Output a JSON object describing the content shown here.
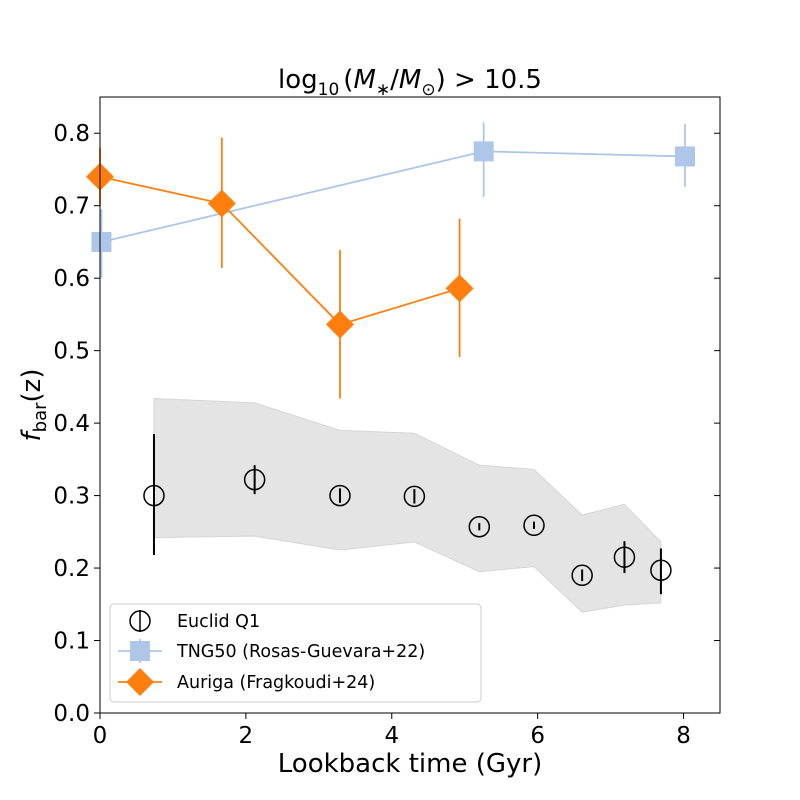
{
  "chart_data": {
    "type": "scatter",
    "title_parts": {
      "log": "log",
      "log_sub": "10",
      "open": "(",
      "m": "M",
      "m_sub": "∗",
      "slash": "/",
      "m2": "M",
      "m2_sub": "⊙",
      "close": ")",
      "rest": " > 10.5"
    },
    "xlabel": "Lookback time (Gyr)",
    "ylabel_parts": {
      "f": "f",
      "sub": "bar",
      "rest": "(z)"
    },
    "xlim": [
      0,
      8.5
    ],
    "ylim": [
      0,
      0.85
    ],
    "xticks": [
      0,
      2,
      4,
      6,
      8
    ],
    "xtick_labels": [
      "0",
      "2",
      "4",
      "6",
      "8"
    ],
    "yticks": [
      0,
      0.1,
      0.2,
      0.3,
      0.4,
      0.5,
      0.6,
      0.7,
      0.8
    ],
    "ytick_labels": [
      "0.0",
      "0.1",
      "0.2",
      "0.3",
      "0.4",
      "0.5",
      "0.6",
      "0.7",
      "0.8"
    ],
    "legend_position": "lower-left",
    "series": [
      {
        "name": "Euclid Q1",
        "marker": "open-circle",
        "color": "#000000",
        "x": [
          0.74,
          2.12,
          3.29,
          4.31,
          5.2,
          5.95,
          6.61,
          7.19,
          7.69
        ],
        "y": [
          0.3,
          0.322,
          0.3,
          0.299,
          0.257,
          0.259,
          0.19,
          0.215,
          0.197
        ],
        "yerr_low": [
          0.082,
          0.02,
          0.01,
          0.01,
          0.005,
          0.005,
          0.008,
          0.022,
          0.033
        ],
        "yerr_high": [
          0.085,
          0.02,
          0.01,
          0.01,
          0.005,
          0.005,
          0.008,
          0.022,
          0.03
        ],
        "band_x": [
          0.74,
          2.12,
          3.29,
          4.31,
          5.2,
          5.95,
          6.61,
          7.19,
          7.69
        ],
        "band_low": [
          0.242,
          0.244,
          0.225,
          0.236,
          0.195,
          0.202,
          0.139,
          0.149,
          0.152
        ],
        "band_high": [
          0.434,
          0.428,
          0.39,
          0.386,
          0.342,
          0.336,
          0.273,
          0.288,
          0.236
        ],
        "band_color": "#e4e4e4"
      },
      {
        "name": "TNG50 (Rosas-Guevara+22)",
        "marker": "square",
        "color": "#aec7e8",
        "x": [
          0.02,
          5.26,
          8.02
        ],
        "y": [
          0.65,
          0.775,
          0.768
        ],
        "yerr_low": [
          0.05,
          0.063,
          0.042
        ],
        "yerr_high": [
          0.045,
          0.04,
          0.045
        ]
      },
      {
        "name": "Auriga (Fragkoudi+24)",
        "marker": "diamond",
        "color": "#ff7f0e",
        "x": [
          0.0,
          1.67,
          3.29,
          4.93
        ],
        "y": [
          0.74,
          0.703,
          0.536,
          0.586
        ],
        "yerr_low": [
          0.04,
          0.089,
          0.102,
          0.095
        ],
        "yerr_high": [
          0.04,
          0.091,
          0.103,
          0.096
        ]
      }
    ]
  }
}
